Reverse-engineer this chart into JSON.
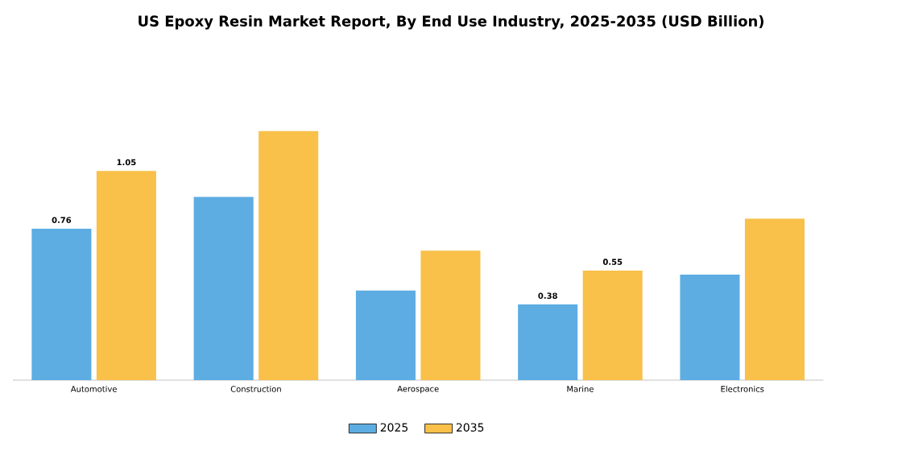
{
  "chart_data": {
    "type": "bar",
    "title": "US Epoxy Resin Market Report, By End Use Industry, 2025-2035 (USD Billion)",
    "categories": [
      "Automotive",
      "Construction",
      "Aerospace",
      "Marine",
      "Electronics"
    ],
    "series": [
      {
        "name": "2025",
        "color": "#5dade2",
        "values": [
          0.76,
          0.92,
          0.45,
          0.38,
          0.53
        ],
        "value_labels": [
          "0.76",
          null,
          null,
          "0.38",
          null
        ]
      },
      {
        "name": "2035",
        "color": "#f9c04a",
        "values": [
          1.05,
          1.25,
          0.65,
          0.55,
          0.81
        ],
        "value_labels": [
          "1.05",
          null,
          null,
          "0.55",
          null
        ]
      }
    ],
    "legend": "bottom"
  }
}
